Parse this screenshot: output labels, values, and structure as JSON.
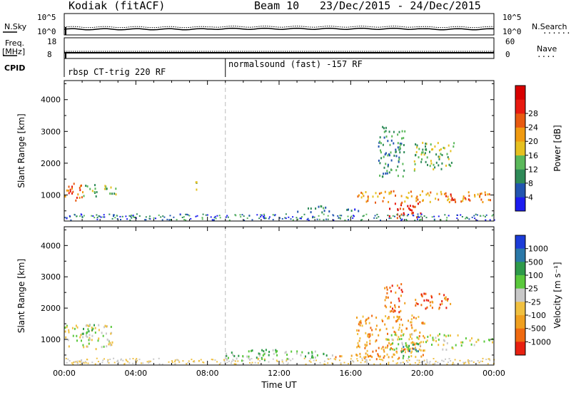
{
  "header": {
    "radar": "Kodiak (fitACF)",
    "beam": "Beam 10",
    "date_range": "23/Dec/2015 - 24/Dec/2015"
  },
  "panels": {
    "nsky_label": "N.Sky",
    "nsearch_label": "N.Search",
    "nsearch_marker": "........",
    "noise_left_ticks": [
      "10^5",
      "10^0"
    ],
    "noise_right_ticks": [
      "10^5",
      "10^0"
    ],
    "freq_label": "Freq.",
    "freq_unit": "[MHz]",
    "freq_ticks": [
      "18",
      "8"
    ],
    "nave_label": "Nave",
    "nave_marker": "....",
    "nave_ticks": [
      "60",
      "0"
    ],
    "cpid_label": "CPID",
    "cpid_segments": [
      {
        "label": "rbsp CT-trig 220 RF",
        "start_hour": 0
      },
      {
        "label": "normalsound (fast) -157 RF",
        "start_hour": 9
      }
    ]
  },
  "chart_data": [
    {
      "type": "heatmap",
      "name": "power",
      "ylabel": "Slant Range [km]",
      "ylim": [
        180,
        4600
      ],
      "yticks": [
        1000,
        2000,
        3000,
        4000
      ],
      "xlim_hours": [
        0,
        24
      ],
      "xticks": [
        "00:00",
        "04:00",
        "08:00",
        "12:00",
        "16:00",
        "20:00",
        "00:00"
      ],
      "colorbar": {
        "label": "Power [dB]",
        "ticks": [
          "4",
          "8",
          "12",
          "16",
          "20",
          "24",
          "28"
        ],
        "colors": [
          "#1c1cf0",
          "#2255b0",
          "#2e8a58",
          "#5ab85a",
          "#e6c020",
          "#f09a10",
          "#e85a10",
          "#e81a10",
          "#d80000"
        ]
      },
      "scatter_regions": [
        {
          "t": [
            0.0,
            1.0
          ],
          "r": [
            850,
            1400
          ],
          "level": 6
        },
        {
          "t": [
            1.0,
            2.9
          ],
          "r": [
            950,
            1350
          ],
          "level": 3
        },
        {
          "t": [
            7.2,
            7.6
          ],
          "r": [
            1150,
            1450
          ],
          "level": 3
        },
        {
          "t": [
            12.5,
            15.0
          ],
          "r": [
            480,
            680
          ],
          "level": 2
        },
        {
          "t": [
            15.0,
            16.5
          ],
          "r": [
            480,
            600
          ],
          "level": 1
        },
        {
          "t": [
            17.5,
            19.0
          ],
          "r": [
            1600,
            3200
          ],
          "level": 2
        },
        {
          "t": [
            19.5,
            21.8
          ],
          "r": [
            1800,
            2700
          ],
          "level": 3
        },
        {
          "t": [
            16.3,
            23.9
          ],
          "r": [
            780,
            1150
          ],
          "level": 5
        },
        {
          "t": [
            18.1,
            19.9
          ],
          "r": [
            300,
            760
          ],
          "level": 7
        },
        {
          "t": [
            21.0,
            22.8
          ],
          "r": [
            850,
            1050
          ],
          "level": 7
        }
      ]
    },
    {
      "type": "heatmap",
      "name": "velocity",
      "ylabel": "Slant Range [km]",
      "xlabel": "Time UT",
      "ylim": [
        180,
        4600
      ],
      "yticks": [
        1000,
        2000,
        3000,
        4000
      ],
      "xlim_hours": [
        0,
        24
      ],
      "xticks": [
        "00:00",
        "04:00",
        "08:00",
        "12:00",
        "16:00",
        "20:00",
        "00:00"
      ],
      "colorbar": {
        "label": "Velocity [m s⁻¹]",
        "ticks": [
          "1000",
          "500",
          "100",
          "25",
          "-25",
          "-100",
          "-500",
          "-1000"
        ],
        "colors": [
          "#1c3cd8",
          "#2a78a8",
          "#2e9a4a",
          "#5ac83c",
          "#c8c8c8",
          "#f0c040",
          "#f0a020",
          "#f06a10",
          "#e82010"
        ]
      },
      "scatter_regions": [
        {
          "t": [
            0.0,
            2.7
          ],
          "r": [
            700,
            1500
          ],
          "level": 4
        },
        {
          "t": [
            1.0,
            1.7
          ],
          "r": [
            1100,
            1500
          ],
          "level": 3
        },
        {
          "t": [
            9.0,
            12.5
          ],
          "r": [
            350,
            700
          ],
          "level": 3
        },
        {
          "t": [
            12.5,
            15.0
          ],
          "r": [
            450,
            650
          ],
          "level": 3
        },
        {
          "t": [
            15.0,
            16.4
          ],
          "r": [
            450,
            600
          ],
          "level": 6
        },
        {
          "t": [
            16.3,
            20.1
          ],
          "r": [
            400,
            1800
          ],
          "level": 6
        },
        {
          "t": [
            18.0,
            22.0
          ],
          "r": [
            700,
            1200
          ],
          "level": 4
        },
        {
          "t": [
            22.0,
            24.0
          ],
          "r": [
            800,
            1100
          ],
          "level": 4
        },
        {
          "t": [
            17.8,
            19.0
          ],
          "r": [
            1900,
            2800
          ],
          "level": 7
        },
        {
          "t": [
            19.5,
            21.8
          ],
          "r": [
            2000,
            2500
          ],
          "level": 7
        },
        {
          "t": [
            18.8,
            19.8
          ],
          "r": [
            400,
            900
          ],
          "level": 2
        }
      ]
    }
  ]
}
